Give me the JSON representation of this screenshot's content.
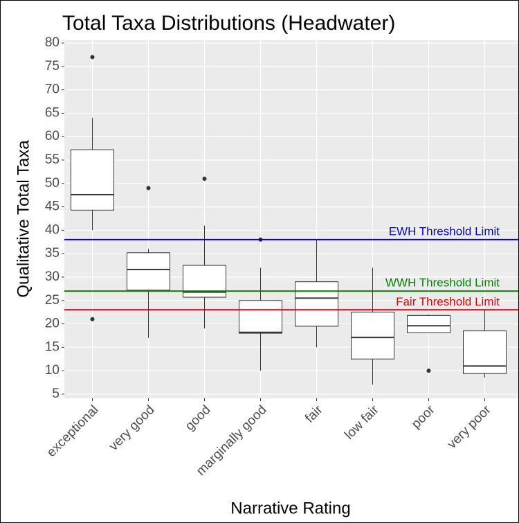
{
  "chart_data": {
    "type": "box",
    "title": "Total Taxa Distributions (Headwater)",
    "x_label": "Narrative Rating",
    "y_label": "Qualitative Total Taxa",
    "categories": [
      "exceptional",
      "very good",
      "good",
      "marginally good",
      "fair",
      "low fair",
      "poor",
      "very poor"
    ],
    "boxes": [
      {
        "low": 40,
        "q1": 44.3,
        "median": 47.6,
        "q3": 57.2,
        "high": 64,
        "outliers": [
          77,
          21
        ]
      },
      {
        "low": 17,
        "q1": 27.2,
        "median": 31.6,
        "q3": 35.2,
        "high": 36,
        "outliers": [
          49
        ]
      },
      {
        "low": 19,
        "q1": 25.7,
        "median": 26.8,
        "q3": 32.5,
        "high": 41,
        "outliers": [
          51
        ]
      },
      {
        "low": 10,
        "q1": 18,
        "median": 18.2,
        "q3": 25,
        "high": 32,
        "outliers": [
          38
        ]
      },
      {
        "low": 15,
        "q1": 19.5,
        "median": 25.5,
        "q3": 29,
        "high": 38,
        "outliers": []
      },
      {
        "low": 7,
        "q1": 12.5,
        "median": 17.1,
        "q3": 22.5,
        "high": 32,
        "outliers": []
      },
      {
        "low": 18,
        "q1": 18.1,
        "median": 19.6,
        "q3": 21.8,
        "high": 22,
        "outliers": [
          10
        ]
      },
      {
        "low": 8.5,
        "q1": 9.4,
        "median": 11,
        "q3": 18.5,
        "high": 23,
        "outliers": []
      }
    ],
    "thresholds": [
      {
        "label": "EWH Threshold Limit",
        "value": 38,
        "color": "#0000cc"
      },
      {
        "label": "WWH Threshold Limit",
        "value": 27,
        "color": "#008000"
      },
      {
        "label": "Fair Threshold Limit",
        "value": 23,
        "color": "#e00000"
      }
    ],
    "ylim": [
      4.1,
      80.6
    ],
    "yticks": [
      5,
      10,
      15,
      20,
      25,
      30,
      35,
      40,
      45,
      50,
      55,
      60,
      65,
      70,
      75,
      80
    ],
    "grid": true
  }
}
